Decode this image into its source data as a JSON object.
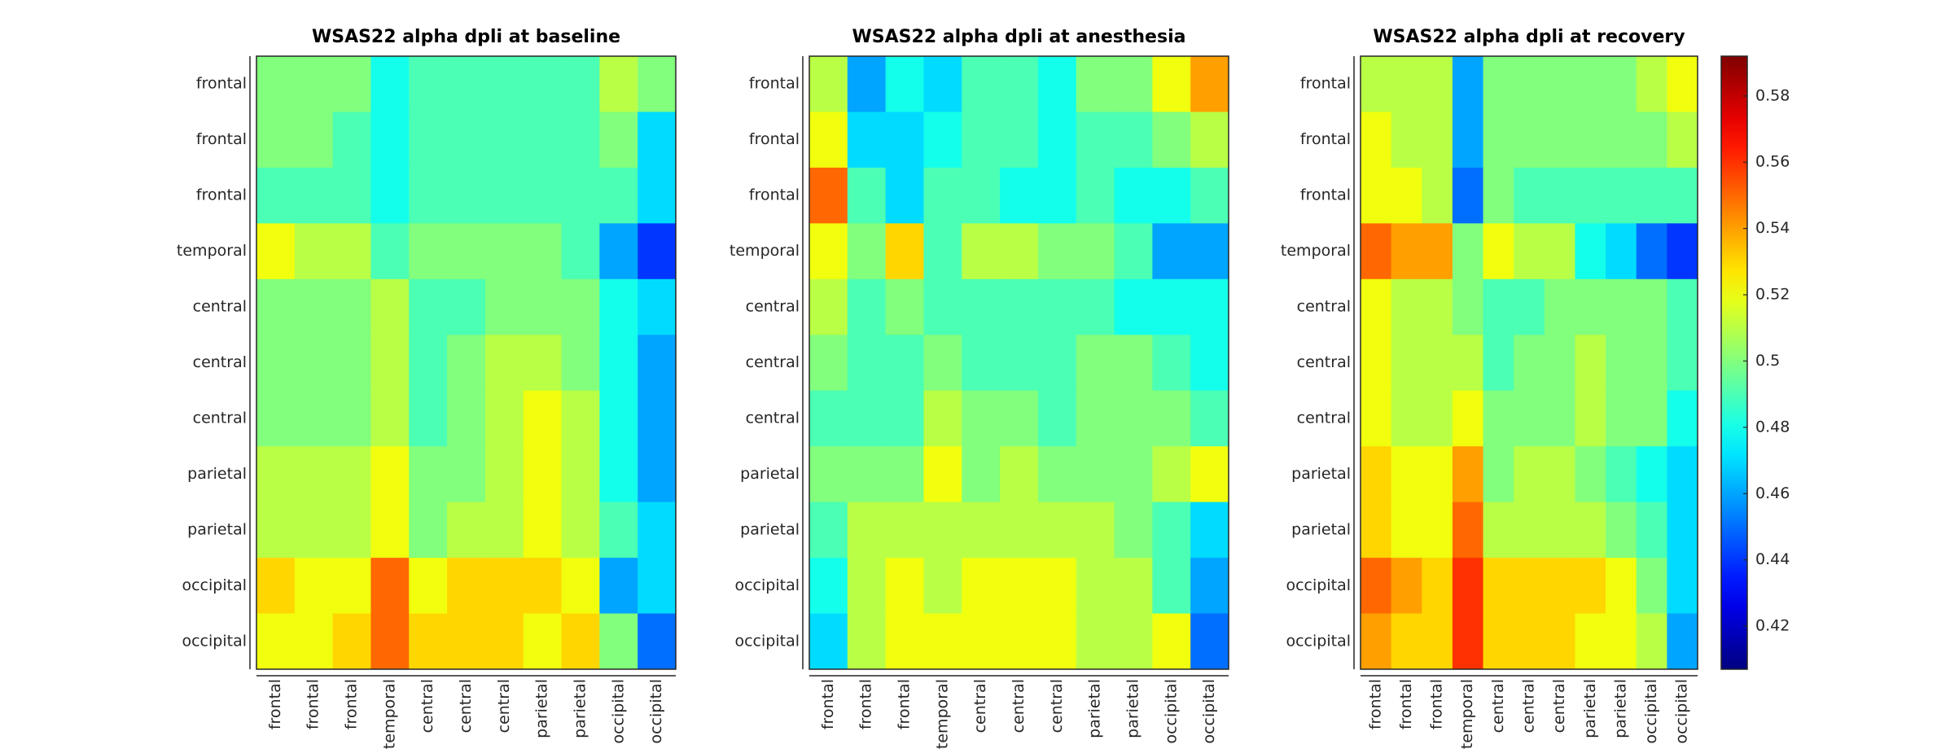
{
  "chart_data": [
    {
      "type": "heatmap",
      "title": "WSAS22 alpha dpli at baseline",
      "x": [
        "frontal",
        "frontal",
        "frontal",
        "temporal",
        "central",
        "central",
        "central",
        "parietal",
        "parietal",
        "occipital",
        "occipital"
      ],
      "y": [
        "frontal",
        "frontal",
        "frontal",
        "temporal",
        "central",
        "central",
        "central",
        "parietal",
        "parietal",
        "occipital",
        "occipital"
      ],
      "values": [
        [
          0.5,
          0.5,
          0.5,
          0.48,
          0.49,
          0.49,
          0.49,
          0.49,
          0.49,
          0.51,
          0.5
        ],
        [
          0.5,
          0.5,
          0.49,
          0.48,
          0.49,
          0.49,
          0.49,
          0.49,
          0.49,
          0.5,
          0.47
        ],
        [
          0.49,
          0.49,
          0.49,
          0.48,
          0.49,
          0.49,
          0.49,
          0.49,
          0.49,
          0.49,
          0.47
        ],
        [
          0.52,
          0.51,
          0.51,
          0.49,
          0.5,
          0.5,
          0.5,
          0.5,
          0.49,
          0.46,
          0.44
        ],
        [
          0.5,
          0.5,
          0.5,
          0.51,
          0.49,
          0.49,
          0.5,
          0.5,
          0.5,
          0.48,
          0.47
        ],
        [
          0.5,
          0.5,
          0.5,
          0.51,
          0.49,
          0.5,
          0.51,
          0.51,
          0.5,
          0.48,
          0.46
        ],
        [
          0.5,
          0.5,
          0.5,
          0.51,
          0.49,
          0.5,
          0.51,
          0.52,
          0.51,
          0.48,
          0.46
        ],
        [
          0.51,
          0.51,
          0.51,
          0.52,
          0.5,
          0.5,
          0.51,
          0.52,
          0.51,
          0.48,
          0.46
        ],
        [
          0.51,
          0.51,
          0.51,
          0.52,
          0.5,
          0.51,
          0.51,
          0.52,
          0.51,
          0.49,
          0.47
        ],
        [
          0.53,
          0.52,
          0.52,
          0.55,
          0.52,
          0.53,
          0.53,
          0.53,
          0.52,
          0.46,
          0.47
        ],
        [
          0.52,
          0.52,
          0.53,
          0.55,
          0.53,
          0.53,
          0.53,
          0.52,
          0.53,
          0.5,
          0.45
        ]
      ]
    },
    {
      "type": "heatmap",
      "title": "WSAS22 alpha dpli at anesthesia",
      "x": [
        "frontal",
        "frontal",
        "frontal",
        "temporal",
        "central",
        "central",
        "central",
        "parietal",
        "parietal",
        "occipital",
        "occipital"
      ],
      "y": [
        "frontal",
        "frontal",
        "frontal",
        "temporal",
        "central",
        "central",
        "central",
        "parietal",
        "parietal",
        "occipital",
        "occipital"
      ],
      "values": [
        [
          0.51,
          0.46,
          0.48,
          0.47,
          0.49,
          0.49,
          0.48,
          0.5,
          0.5,
          0.52,
          0.54
        ],
        [
          0.52,
          0.47,
          0.47,
          0.48,
          0.49,
          0.49,
          0.48,
          0.49,
          0.49,
          0.5,
          0.51
        ],
        [
          0.55,
          0.49,
          0.47,
          0.49,
          0.49,
          0.48,
          0.48,
          0.49,
          0.48,
          0.48,
          0.49
        ],
        [
          0.52,
          0.5,
          0.53,
          0.49,
          0.51,
          0.51,
          0.5,
          0.5,
          0.49,
          0.46,
          0.46
        ],
        [
          0.51,
          0.49,
          0.5,
          0.49,
          0.49,
          0.49,
          0.49,
          0.49,
          0.48,
          0.48,
          0.48
        ],
        [
          0.5,
          0.49,
          0.49,
          0.5,
          0.49,
          0.49,
          0.49,
          0.5,
          0.5,
          0.49,
          0.48
        ],
        [
          0.49,
          0.49,
          0.49,
          0.51,
          0.5,
          0.5,
          0.49,
          0.5,
          0.5,
          0.5,
          0.49
        ],
        [
          0.5,
          0.5,
          0.5,
          0.52,
          0.5,
          0.51,
          0.5,
          0.5,
          0.5,
          0.51,
          0.52
        ],
        [
          0.49,
          0.51,
          0.51,
          0.51,
          0.51,
          0.51,
          0.51,
          0.51,
          0.5,
          0.49,
          0.47
        ],
        [
          0.48,
          0.51,
          0.52,
          0.51,
          0.52,
          0.52,
          0.52,
          0.51,
          0.51,
          0.49,
          0.46
        ],
        [
          0.47,
          0.51,
          0.52,
          0.52,
          0.52,
          0.52,
          0.52,
          0.51,
          0.51,
          0.52,
          0.45
        ]
      ]
    },
    {
      "type": "heatmap",
      "title": "WSAS22 alpha dpli at recovery",
      "x": [
        "frontal",
        "frontal",
        "frontal",
        "temporal",
        "central",
        "central",
        "central",
        "parietal",
        "parietal",
        "occipital",
        "occipital"
      ],
      "y": [
        "frontal",
        "frontal",
        "frontal",
        "temporal",
        "central",
        "central",
        "central",
        "parietal",
        "parietal",
        "occipital",
        "occipital"
      ],
      "values": [
        [
          0.51,
          0.51,
          0.51,
          0.46,
          0.5,
          0.5,
          0.5,
          0.5,
          0.5,
          0.51,
          0.52
        ],
        [
          0.52,
          0.51,
          0.51,
          0.46,
          0.5,
          0.5,
          0.5,
          0.5,
          0.5,
          0.5,
          0.51
        ],
        [
          0.52,
          0.52,
          0.51,
          0.45,
          0.5,
          0.49,
          0.49,
          0.49,
          0.49,
          0.49,
          0.49
        ],
        [
          0.55,
          0.54,
          0.54,
          0.5,
          0.52,
          0.51,
          0.51,
          0.48,
          0.47,
          0.45,
          0.44
        ],
        [
          0.52,
          0.51,
          0.51,
          0.5,
          0.49,
          0.49,
          0.5,
          0.5,
          0.5,
          0.5,
          0.49
        ],
        [
          0.52,
          0.51,
          0.51,
          0.51,
          0.49,
          0.5,
          0.5,
          0.51,
          0.5,
          0.5,
          0.49
        ],
        [
          0.52,
          0.51,
          0.51,
          0.52,
          0.5,
          0.5,
          0.5,
          0.51,
          0.5,
          0.5,
          0.48
        ],
        [
          0.53,
          0.52,
          0.52,
          0.54,
          0.5,
          0.51,
          0.51,
          0.5,
          0.49,
          0.48,
          0.47
        ],
        [
          0.53,
          0.52,
          0.52,
          0.55,
          0.51,
          0.51,
          0.51,
          0.51,
          0.5,
          0.49,
          0.47
        ],
        [
          0.55,
          0.54,
          0.53,
          0.56,
          0.53,
          0.53,
          0.53,
          0.53,
          0.52,
          0.5,
          0.47
        ],
        [
          0.54,
          0.53,
          0.53,
          0.56,
          0.53,
          0.53,
          0.53,
          0.52,
          0.52,
          0.51,
          0.46
        ]
      ],
      "colormap": "jet",
      "zlim": [
        0.407,
        0.592
      ],
      "zticks": [
        0.42,
        0.44,
        0.46,
        0.48,
        0.5,
        0.52,
        0.54,
        0.56,
        0.58
      ]
    }
  ]
}
